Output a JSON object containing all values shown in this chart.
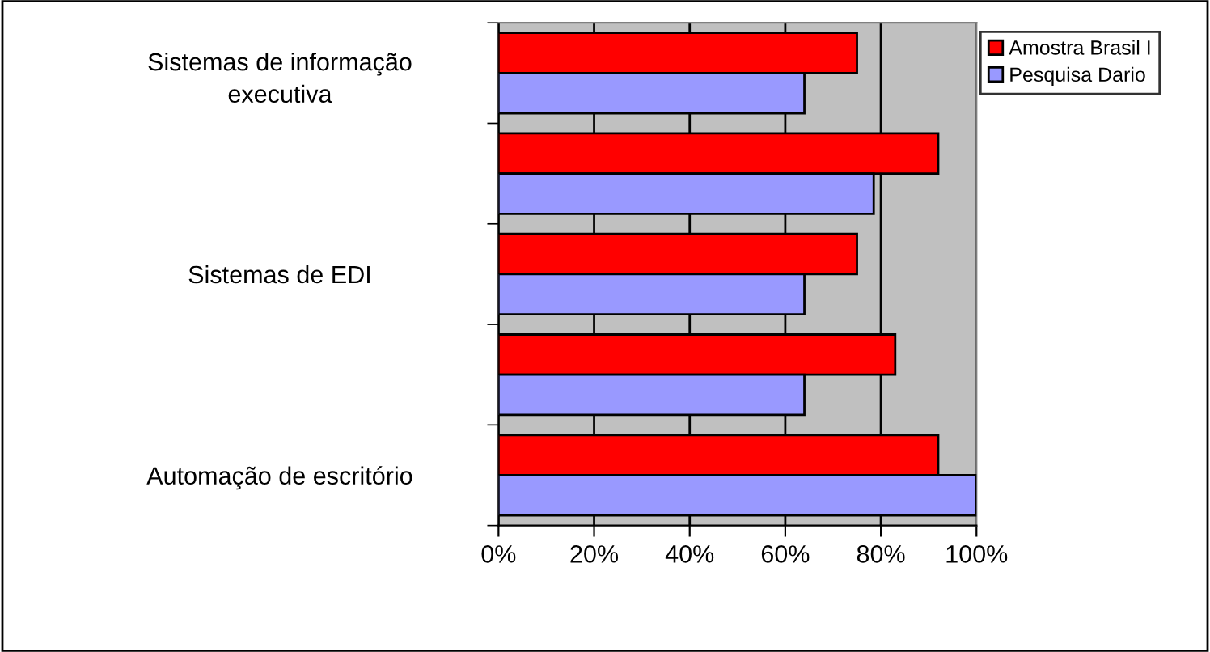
{
  "chart_data": {
    "type": "bar",
    "orientation": "horizontal",
    "categories": [
      "Sistemas de informação\nexecutiva",
      null,
      "Sistemas de EDI",
      null,
      "Automação de escritório"
    ],
    "series": [
      {
        "name": "Amostra Brasil I",
        "color": "#ff0000",
        "values": [
          75,
          92,
          75,
          83,
          92
        ]
      },
      {
        "name": "Pesquisa Dario",
        "color": "#9999ff",
        "values": [
          64,
          78.5,
          64,
          64,
          100
        ]
      }
    ],
    "xlim": [
      0,
      100
    ],
    "xticks": [
      {
        "value": 0,
        "label": "0%"
      },
      {
        "value": 20,
        "label": "20%"
      },
      {
        "value": 40,
        "label": "40%"
      },
      {
        "value": 60,
        "label": "60%"
      },
      {
        "value": 80,
        "label": "80%"
      },
      {
        "value": 100,
        "label": "100%"
      }
    ],
    "grid": "x",
    "legend": "top right"
  }
}
